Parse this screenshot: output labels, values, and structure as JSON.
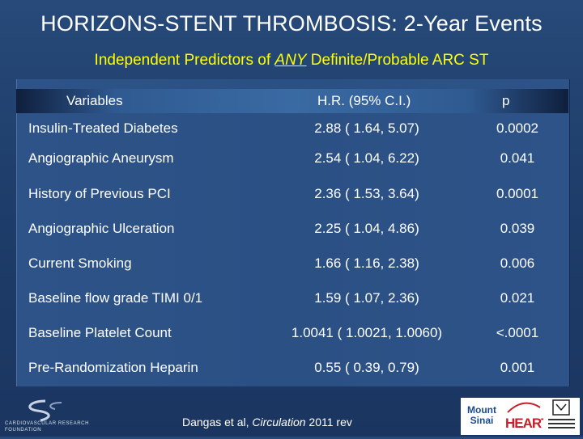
{
  "title": "HORIZONS-STENT THROMBOSIS: 2-Year Events",
  "subtitle": {
    "before": "Independent Predictors of ",
    "emph": "ANY",
    "after": " Definite/Probable ARC ST"
  },
  "table": {
    "headers": {
      "variables": "Variables",
      "hr": "H.R. (95% C.I.)",
      "p": "p"
    },
    "rows": [
      {
        "variable": "Insulin-Treated Diabetes",
        "hr": "2.88 ( 1.64, 5.07)",
        "p": "0.0002"
      },
      {
        "variable": "Angiographic Aneurysm",
        "hr": "2.54 ( 1.04, 6.22)",
        "p": "0.041"
      },
      {
        "variable": "History of Previous PCI",
        "hr": "2.36 ( 1.53, 3.64)",
        "p": "0.0001"
      },
      {
        "variable": "Angiographic Ulceration",
        "hr": "2.25 ( 1.04, 4.86)",
        "p": "0.039"
      },
      {
        "variable": "Current Smoking",
        "hr": "1.66 ( 1.16, 2.38)",
        "p": "0.006"
      },
      {
        "variable": "Baseline flow grade TIMI 0/1",
        "hr": "1.59 ( 1.07, 2.36)",
        "p": "0.021"
      },
      {
        "variable": "Baseline Platelet Count",
        "hr": "1.0041 ( 1.0021, 1.0060)",
        "p": "<.0001"
      },
      {
        "variable": "Pre-Randomization Heparin",
        "hr": "0.55 ( 0.39, 0.79)",
        "p": "0.001"
      }
    ]
  },
  "citation": {
    "authors": "Dangas et al, ",
    "journal": "Circulation",
    "year": " 2011 rev"
  },
  "logos": {
    "crf": "CARDIOVASCULAR RESEARCH FOUNDATION",
    "mount_sinai_line1": "Mount",
    "mount_sinai_line2": "Sinai",
    "heart": "HEART"
  },
  "colors": {
    "background": "#1f3e6b",
    "subtitle": "#ffff00",
    "text": "#ffffff",
    "heart_red": "#c3212b"
  }
}
